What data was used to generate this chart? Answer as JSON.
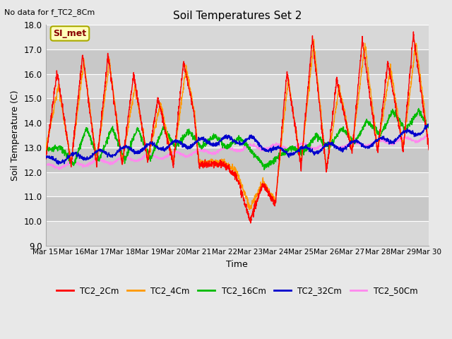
{
  "title": "Soil Temperatures Set 2",
  "top_left_text": "No data for f_TC2_8Cm",
  "xlabel": "Time",
  "ylabel": "Soil Temperature (C)",
  "ylim": [
    9.0,
    18.0
  ],
  "yticks": [
    9.0,
    10.0,
    11.0,
    12.0,
    13.0,
    14.0,
    15.0,
    16.0,
    17.0,
    18.0
  ],
  "xtick_labels": [
    "Mar 15",
    "Mar 16",
    "Mar 17",
    "Mar 18",
    "Mar 19",
    "Mar 20",
    "Mar 21",
    "Mar 22",
    "Mar 23",
    "Mar 24",
    "Mar 25",
    "Mar 26",
    "Mar 27",
    "Mar 28",
    "Mar 29",
    "Mar 30"
  ],
  "legend_label": "SI_met",
  "legend_entries": [
    "TC2_2Cm",
    "TC2_4Cm",
    "TC2_16Cm",
    "TC2_32Cm",
    "TC2_50Cm"
  ],
  "line_colors": [
    "#ff0000",
    "#ff9900",
    "#00bb00",
    "#0000cc",
    "#ff88ee"
  ],
  "background_color": "#e8e8e8",
  "plot_bg_color": "#d3d3d3",
  "grid_color": "#ffffff",
  "stripe_color": "#c8c8c8"
}
